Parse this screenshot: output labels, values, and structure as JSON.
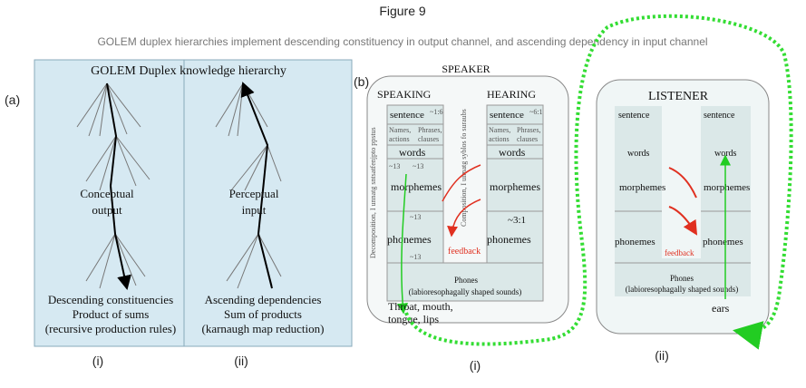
{
  "figure_title": "Figure 9",
  "caption": "GOLEM duplex hierarchies implement descending constituency in output channel, and ascending dependency in input channel",
  "panel_a": {
    "label": "(a)",
    "title": "GOLEM Duplex knowledge hierarchy",
    "left": {
      "center": [
        "Conceptual",
        "output"
      ],
      "bottom": [
        "Descending constituencies",
        "Product of sums",
        "(recursive production rules)"
      ],
      "sub": "(i)"
    },
    "right": {
      "center": [
        "Perceptual",
        "input"
      ],
      "bottom": [
        "Ascending dependencies",
        "Sum of products",
        "(karnaugh map reduction)"
      ],
      "sub": "(ii)"
    }
  },
  "panel_b": {
    "label": "(b)",
    "speaker": {
      "title": "SPEAKER",
      "speaking": "SPEAKING",
      "hearing": "HEARING",
      "levels": [
        "sentence",
        "words",
        "morphemes",
        "phonemes"
      ],
      "left_small": [
        "Names,",
        "actions",
        "~13",
        "~1:6",
        "Phrases,",
        "clauses",
        "~13",
        "~13",
        "~13"
      ],
      "right_small": [
        "Names,",
        "actions",
        "~6:1",
        "Phrases,",
        "clauses",
        "~3:1"
      ],
      "left_vertical": "Decomposition, I unnatg sntsatfenjpto ppstus",
      "mid_vertical": "Composition, I uimatg syblos fo suraubs",
      "feedback": "feedback",
      "phones": "Phones",
      "phones_desc": "(labioresophagally shaped sounds)",
      "bottom": [
        "Throat, mouth,",
        "tongue, lips"
      ],
      "sub": "(i)"
    },
    "listener": {
      "title": "LISTENER",
      "levels": [
        "sentence",
        "words",
        "morphemes",
        "phonemes"
      ],
      "feedback": "feedback",
      "phones": "Phones",
      "phones_desc": "(labioresophagally shaped sounds)",
      "ears": "ears",
      "sub": "(ii)"
    }
  },
  "colors": {
    "panel_a_bg": "#d6e9f2",
    "green": "#22cc22",
    "red": "#e03020",
    "box_fill": "#dbe8e8"
  }
}
